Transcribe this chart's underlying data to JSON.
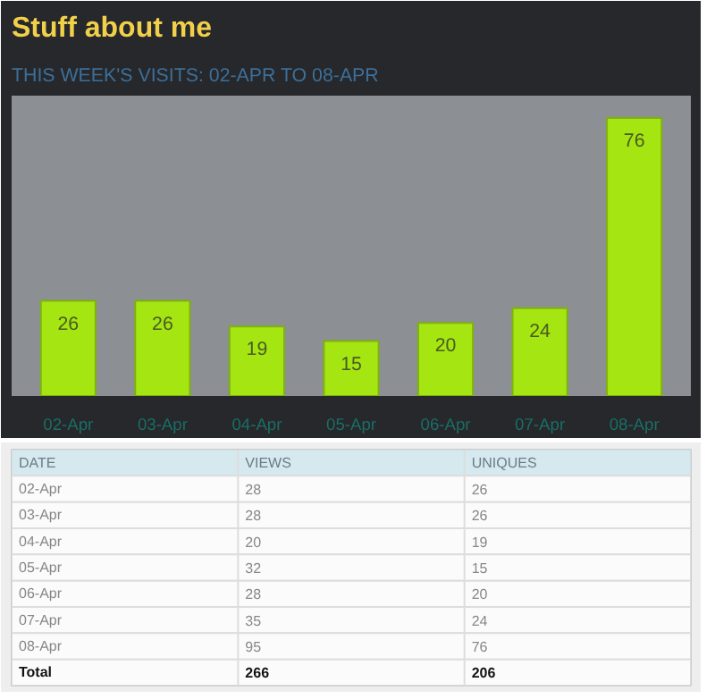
{
  "chart_data": [
    {
      "type": "bar",
      "title": "Stuff about me",
      "subtitle": "THIS WEEK'S VISITS: 02-APR TO 08-APR",
      "categories": [
        "02-Apr",
        "03-Apr",
        "04-Apr",
        "05-Apr",
        "06-Apr",
        "07-Apr",
        "08-Apr"
      ],
      "values": [
        26,
        26,
        19,
        15,
        20,
        24,
        76
      ],
      "color": "#a4e512",
      "data_labels": true,
      "grid": false
    },
    {
      "type": "other",
      "xlabel": "DATE",
      "categories": [
        "02-Apr",
        "03-Apr",
        "04-Apr",
        "05-Apr",
        "06-Apr",
        "07-Apr",
        "08-Apr"
      ],
      "series": [
        {
          "name": "VIEWS",
          "values": [
            28,
            28,
            20,
            32,
            28,
            35,
            95
          ]
        },
        {
          "name": "UNIQUES",
          "values": [
            26,
            26,
            19,
            15,
            20,
            24,
            76
          ]
        }
      ],
      "totals": [
        "266",
        "206"
      ],
      "annotations": [
        "Total"
      ],
      "data_labels": true
    }
  ]
}
